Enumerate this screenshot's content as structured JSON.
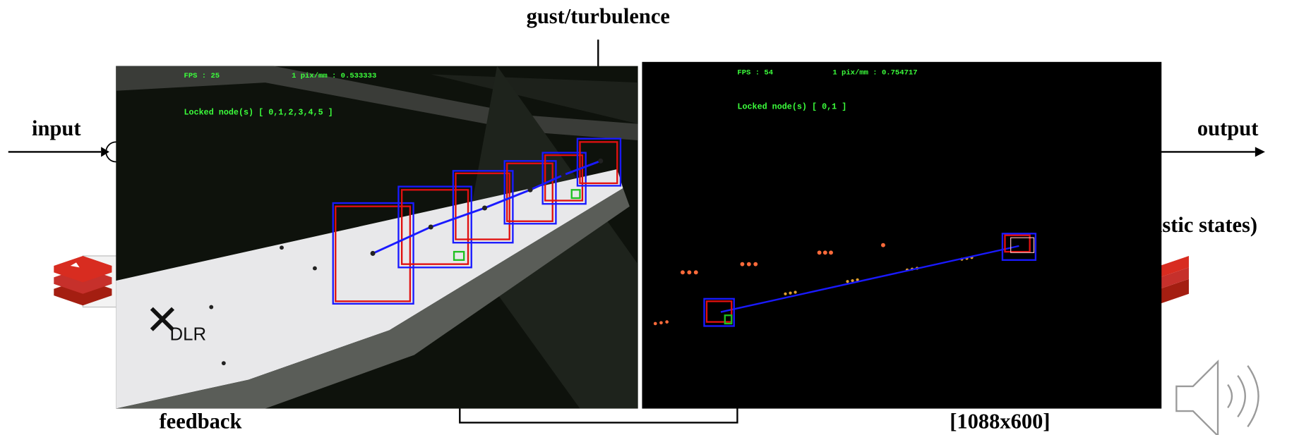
{
  "slide": {
    "top_label": "gust/turbulence",
    "input_label": "input",
    "output_label": "output",
    "right_label": "astic states)",
    "feedback_label": "feedback",
    "resolution_label": "[1088x600]"
  },
  "left_view": {
    "fps": "FPS : 25",
    "scale": "1 pix/mm : 0.533333",
    "locked": "Locked node(s) [ 0,1,2,3,4,5 ]",
    "logo": "DLR"
  },
  "right_view": {
    "fps": "FPS : 54",
    "scale": "1 pix/mm : 0.754717",
    "locked": "Locked node(s) [ 0,1 ]"
  }
}
